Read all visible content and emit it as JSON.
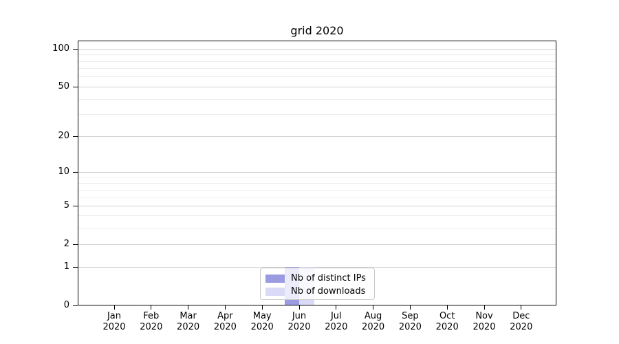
{
  "chart_data": {
    "type": "bar",
    "title": "grid 2020",
    "x": {
      "months": [
        "Jan",
        "Feb",
        "Mar",
        "Apr",
        "May",
        "Jun",
        "Jul",
        "Aug",
        "Sep",
        "Oct",
        "Nov",
        "Dec"
      ],
      "year": "2020"
    },
    "y_axis": {
      "scale": "log1p",
      "major_ticks": [
        0,
        1,
        2,
        5,
        10,
        20,
        50,
        100
      ],
      "minor_gridlines": [
        3,
        4,
        6,
        7,
        8,
        9,
        30,
        40,
        60,
        70,
        80,
        90
      ],
      "range": [
        0,
        115
      ],
      "grid": "on"
    },
    "series": [
      {
        "name": "Nb of distinct IPs",
        "color": "#9b9be2",
        "values": [
          0,
          0,
          0,
          0,
          0,
          1,
          0,
          0,
          0,
          0,
          0,
          0
        ]
      },
      {
        "name": "Nb of downloads",
        "color": "#dadaf6",
        "values": [
          0,
          0,
          0,
          0,
          0,
          1,
          0,
          0,
          0,
          0,
          0,
          0
        ]
      }
    ],
    "legend": {
      "position": "lower center"
    }
  },
  "colors": {
    "grid_major": "#cfcfcf",
    "grid_minor": "#ededed",
    "axis": "#000000",
    "legend_border": "#c9c9c9",
    "background": "#ffffff"
  }
}
